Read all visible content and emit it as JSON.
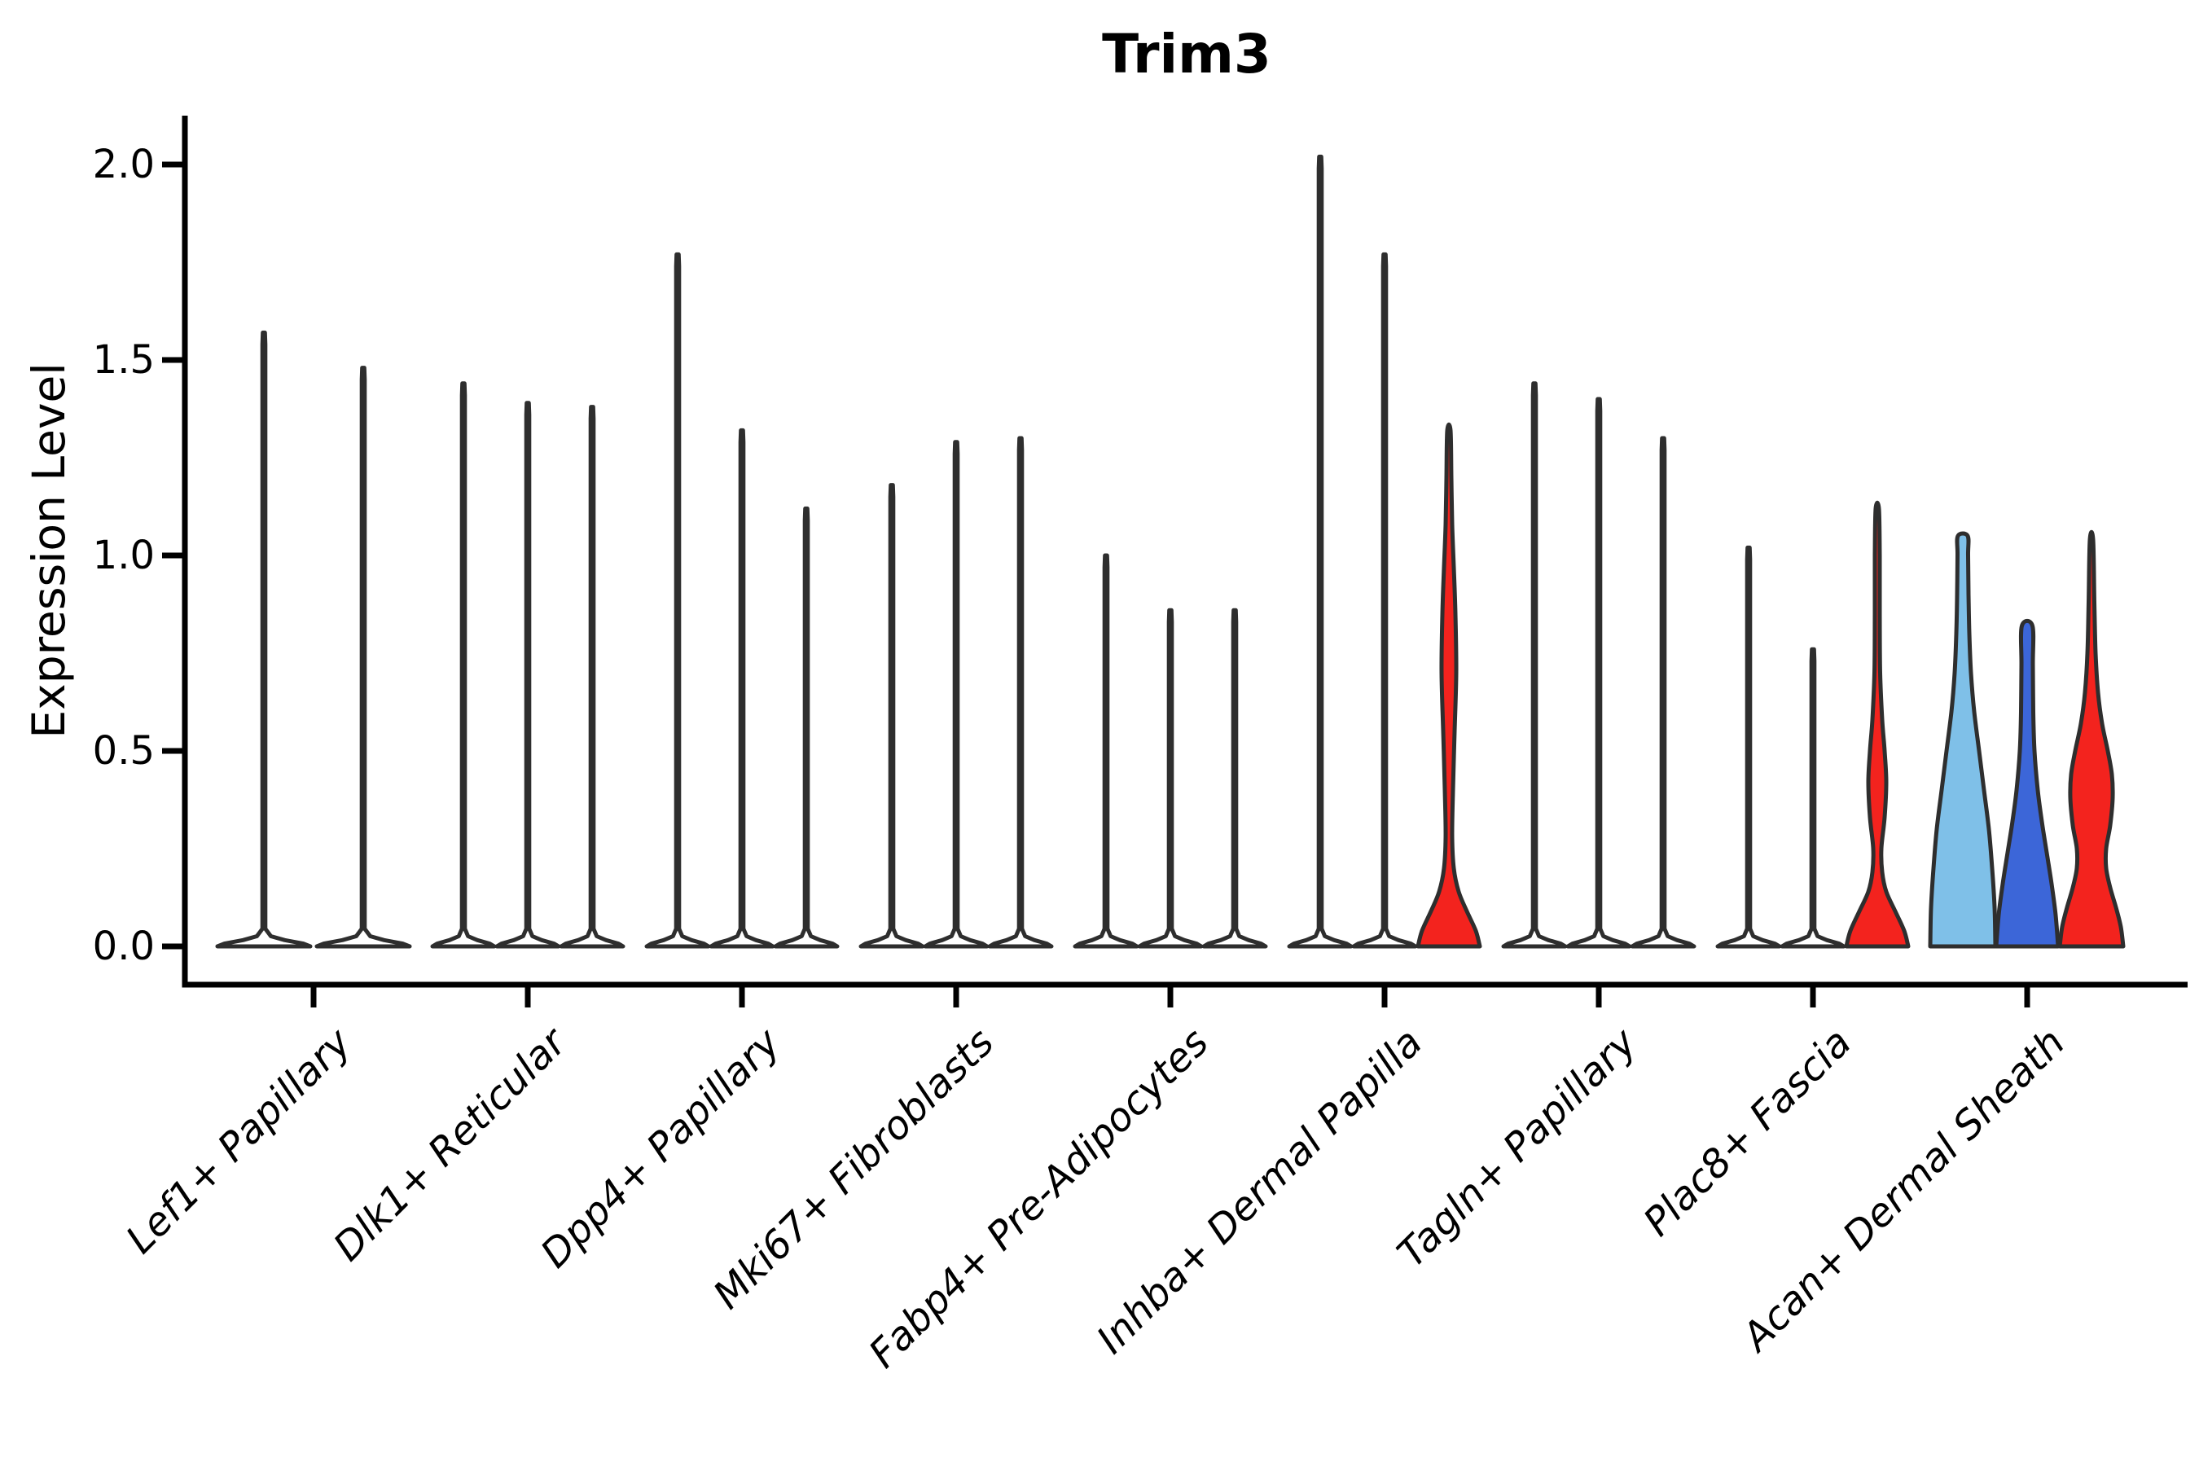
{
  "chart_data": {
    "type": "violin",
    "title": "Trim3",
    "ylabel": "Expression Level",
    "xlabel": "",
    "ylim": [
      0,
      2.12
    ],
    "yticks": [
      0.0,
      0.5,
      1.0,
      1.5,
      2.0
    ],
    "ytick_labels": [
      "0.0",
      "0.5",
      "1.0",
      "1.5",
      "2.0"
    ],
    "grid": false,
    "legend": "none",
    "categories": [
      "Lef1+ Papillary",
      "Dlk1+ Reticular",
      "Dpp4+ Papillary",
      "Mki67+ Fibroblasts",
      "Fabp4+ Pre-Adipocytes",
      "Inhba+ Dermal Papilla",
      "Tagln+ Papillary",
      "Plac8+ Fascia",
      "Acan+ Dermal Sheath"
    ],
    "colors": {
      "plain_fill": "#ffffff",
      "red": "#f3231e",
      "lightblue": "#7fc0e8",
      "blue": "#3c66d8",
      "edge": "#2e2e2e",
      "axis": "#000000"
    },
    "groups": [
      {
        "category": "Lef1+ Papillary",
        "violins": [
          {
            "max": 1.57,
            "fill": "plain_fill"
          },
          {
            "max": 1.48,
            "fill": "plain_fill"
          }
        ]
      },
      {
        "category": "Dlk1+ Reticular",
        "violins": [
          {
            "max": 1.44,
            "fill": "plain_fill"
          },
          {
            "max": 1.39,
            "fill": "plain_fill"
          },
          {
            "max": 1.38,
            "fill": "plain_fill"
          }
        ]
      },
      {
        "category": "Dpp4+ Papillary",
        "violins": [
          {
            "max": 1.77,
            "fill": "plain_fill"
          },
          {
            "max": 1.32,
            "fill": "plain_fill"
          },
          {
            "max": 1.12,
            "fill": "plain_fill"
          }
        ]
      },
      {
        "category": "Mki67+ Fibroblasts",
        "violins": [
          {
            "max": 1.18,
            "fill": "plain_fill"
          },
          {
            "max": 1.29,
            "fill": "plain_fill"
          },
          {
            "max": 1.3,
            "fill": "plain_fill"
          }
        ]
      },
      {
        "category": "Fabp4+ Pre-Adipocytes",
        "violins": [
          {
            "max": 1.0,
            "fill": "plain_fill"
          },
          {
            "max": 0.86,
            "fill": "plain_fill"
          },
          {
            "max": 0.86,
            "fill": "plain_fill"
          }
        ]
      },
      {
        "category": "Inhba+ Dermal Papilla",
        "violins": [
          {
            "max": 2.02,
            "fill": "plain_fill"
          },
          {
            "max": 1.77,
            "fill": "plain_fill"
          },
          {
            "max": 1.32,
            "fill": "red",
            "profile": [
              [
                0,
                38
              ],
              [
                0.04,
                33
              ],
              [
                0.09,
                22
              ],
              [
                0.14,
                12
              ],
              [
                0.2,
                6
              ],
              [
                0.28,
                4
              ],
              [
                0.4,
                5
              ],
              [
                0.55,
                7
              ],
              [
                0.7,
                9
              ],
              [
                0.85,
                8
              ],
              [
                0.97,
                6
              ],
              [
                1.08,
                4
              ],
              [
                1.2,
                3
              ],
              [
                1.32,
                2
              ]
            ]
          }
        ]
      },
      {
        "category": "Tagln+ Papillary",
        "violins": [
          {
            "max": 1.44,
            "fill": "plain_fill"
          },
          {
            "max": 1.4,
            "fill": "plain_fill"
          },
          {
            "max": 1.3,
            "fill": "plain_fill"
          }
        ]
      },
      {
        "category": "Plac8+ Fascia",
        "violins": [
          {
            "max": 1.02,
            "fill": "plain_fill"
          },
          {
            "max": 0.76,
            "fill": "plain_fill"
          },
          {
            "max": 1.12,
            "fill": "red",
            "profile": [
              [
                0,
                38
              ],
              [
                0.04,
                33
              ],
              [
                0.09,
                22
              ],
              [
                0.14,
                11
              ],
              [
                0.19,
                6
              ],
              [
                0.25,
                5
              ],
              [
                0.33,
                9
              ],
              [
                0.42,
                11
              ],
              [
                0.5,
                9
              ],
              [
                0.58,
                6
              ],
              [
                0.7,
                3.5
              ],
              [
                0.85,
                3
              ],
              [
                1.0,
                3
              ],
              [
                1.12,
                2
              ]
            ]
          }
        ]
      },
      {
        "category": "Acan+ Dermal Sheath",
        "violins": [
          {
            "max": 1.05,
            "fill": "lightblue",
            "profile": [
              [
                0,
                40
              ],
              [
                0.1,
                39
              ],
              [
                0.2,
                36
              ],
              [
                0.3,
                32
              ],
              [
                0.4,
                26
              ],
              [
                0.5,
                20
              ],
              [
                0.6,
                14
              ],
              [
                0.7,
                10
              ],
              [
                0.8,
                8
              ],
              [
                0.9,
                7
              ],
              [
                1.0,
                6.5
              ],
              [
                1.05,
                6
              ]
            ]
          },
          {
            "max": 0.82,
            "fill": "blue",
            "profile": [
              [
                0,
                38
              ],
              [
                0.08,
                35
              ],
              [
                0.16,
                30
              ],
              [
                0.24,
                24
              ],
              [
                0.32,
                18
              ],
              [
                0.4,
                13
              ],
              [
                0.5,
                9
              ],
              [
                0.6,
                7.5
              ],
              [
                0.72,
                7
              ],
              [
                0.82,
                6.5
              ]
            ]
          },
          {
            "max": 1.04,
            "fill": "red",
            "profile": [
              [
                0,
                39
              ],
              [
                0.05,
                36
              ],
              [
                0.1,
                30
              ],
              [
                0.15,
                23
              ],
              [
                0.2,
                18
              ],
              [
                0.25,
                18
              ],
              [
                0.31,
                23
              ],
              [
                0.38,
                26
              ],
              [
                0.44,
                25
              ],
              [
                0.5,
                20
              ],
              [
                0.57,
                13
              ],
              [
                0.65,
                8
              ],
              [
                0.75,
                5
              ],
              [
                0.88,
                3.5
              ],
              [
                1.04,
                2
              ]
            ]
          }
        ]
      }
    ]
  }
}
